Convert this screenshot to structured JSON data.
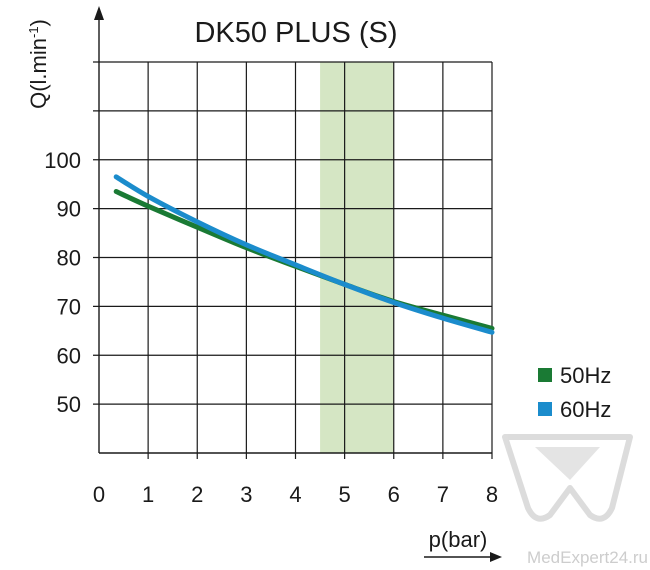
{
  "chart_data": {
    "type": "line",
    "title": "DK50 PLUS (S)",
    "xlabel": "p(bar)",
    "ylabel": "Q(l.min-1)",
    "ylabel_base": "Q(l.min",
    "ylabel_sup": "-1",
    "ylabel_close": ")",
    "xlim": [
      0,
      8
    ],
    "ylim": [
      40,
      120
    ],
    "x_ticks": [
      "0",
      "1",
      "2",
      "3",
      "4",
      "5",
      "6",
      "7",
      "8"
    ],
    "y_ticks": [
      "50",
      "60",
      "70",
      "80",
      "90",
      "100"
    ],
    "grid": true,
    "legend_position": "right",
    "highlight_band": {
      "x_from": 4.5,
      "x_to": 6,
      "color": "#d5e6c4"
    },
    "series": [
      {
        "name": "50Hz",
        "color": "#1a7a34",
        "x": [
          0.35,
          1,
          2,
          3,
          4,
          5,
          6,
          7,
          8
        ],
        "y": [
          93.5,
          90.5,
          86.2,
          82.0,
          78.2,
          74.5,
          71.0,
          68.2,
          65.5
        ]
      },
      {
        "name": "60Hz",
        "color": "#1b8ccc",
        "x": [
          0.35,
          1,
          2,
          3,
          4,
          5,
          6,
          7,
          8
        ],
        "y": [
          96.5,
          92.5,
          87.3,
          82.6,
          78.5,
          74.5,
          70.8,
          67.6,
          64.7
        ]
      }
    ]
  },
  "watermark": {
    "text": "MedExpert24.ru"
  }
}
